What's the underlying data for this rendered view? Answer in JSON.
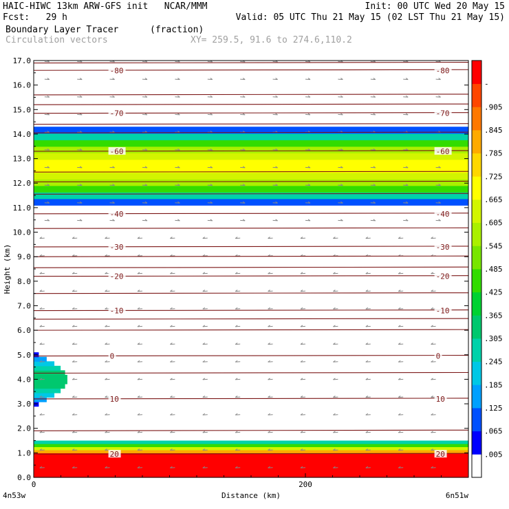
{
  "header": {
    "left_line1": "HAIC-HIWC 13km ARW-GFS init   NCAR/MMM",
    "left_line2": "Fcst:   29 h",
    "right_line1": "Init: 00 UTC Wed 20 May 15",
    "right_line2": "Valid: 05 UTC Thu 21 May 15 (02 LST Thu 21 May 15)",
    "field_name": "Boundary Layer Tracer",
    "field_units": "(fraction)",
    "vector_label": "Circulation vectors",
    "xy_label": "XY= 259.5, 91.6 to 274.6,110.2"
  },
  "chart_data": {
    "type": "heatmap",
    "title": "Boundary Layer Tracer",
    "units": "fraction",
    "xlabel": "Distance (km)",
    "ylabel": "Height (km)",
    "xlim": [
      0,
      320
    ],
    "ylim": [
      0.0,
      17.0
    ],
    "x_ticks": [
      {
        "v": 0,
        "label": "0"
      },
      {
        "v": 200,
        "label": "200"
      }
    ],
    "x_end_labels": [
      "4n53w",
      "6n51w"
    ],
    "y_ticks": [
      "0.0",
      "1.0",
      "2.0",
      "3.0",
      "4.0",
      "5.0",
      "6.0",
      "7.0",
      "8.0",
      "9.0",
      "10.0",
      "11.0",
      "12.0",
      "13.0",
      "14.0",
      "15.0",
      "16.0",
      "17.0"
    ],
    "colorbar": {
      "labels": [
        ".005",
        ".065",
        ".125",
        ".185",
        ".245",
        ".305",
        ".365",
        ".425",
        ".485",
        ".545",
        ".605",
        ".665",
        ".725",
        ".785",
        ".845",
        ".905",
        "-"
      ],
      "colors": [
        "#ffffff",
        "#0000ff",
        "#0050ff",
        "#00a0ff",
        "#00c8e6",
        "#00d2aa",
        "#00c86e",
        "#00d232",
        "#32dc00",
        "#78e600",
        "#aaf000",
        "#d2f500",
        "#ffff00",
        "#ffd700",
        "#ffaa00",
        "#ff7800",
        "#ff4600",
        "#ff0000"
      ]
    },
    "temperature_contours": [
      {
        "label": "-80",
        "h": 16.6
      },
      {
        "label": "-70",
        "h": 14.85
      },
      {
        "label": "-60",
        "h": 13.3
      },
      {
        "label": "-40",
        "h": 10.75
      },
      {
        "label": "-30",
        "h": 9.4
      },
      {
        "label": "-20",
        "h": 8.2
      },
      {
        "label": "-10",
        "h": 6.8
      },
      {
        "label": "0",
        "h": 4.95
      },
      {
        "label": "10",
        "h": 3.2
      },
      {
        "label": "20",
        "h": 0.95
      }
    ],
    "unlabeled_contours": [
      16.9,
      15.6,
      15.2,
      14.4,
      14.05,
      12.45,
      12.05,
      11.55,
      10.15,
      9.0,
      8.55,
      7.5,
      6.45,
      6.0,
      4.25,
      1.9
    ],
    "tracer_regions": [
      {
        "name": "upper-layer",
        "x": [
          0,
          320
        ],
        "bottom": 11.1,
        "top": 14.3,
        "peak": 0.7
      },
      {
        "name": "lower-left-blob",
        "x": [
          0,
          25
        ],
        "bottom": 2.9,
        "top": 5.1,
        "peak": 0.35
      },
      {
        "name": "boundary-layer",
        "x": [
          0,
          320
        ],
        "bottom": 0.0,
        "top": 1.5,
        "peak": 1.0
      }
    ]
  }
}
